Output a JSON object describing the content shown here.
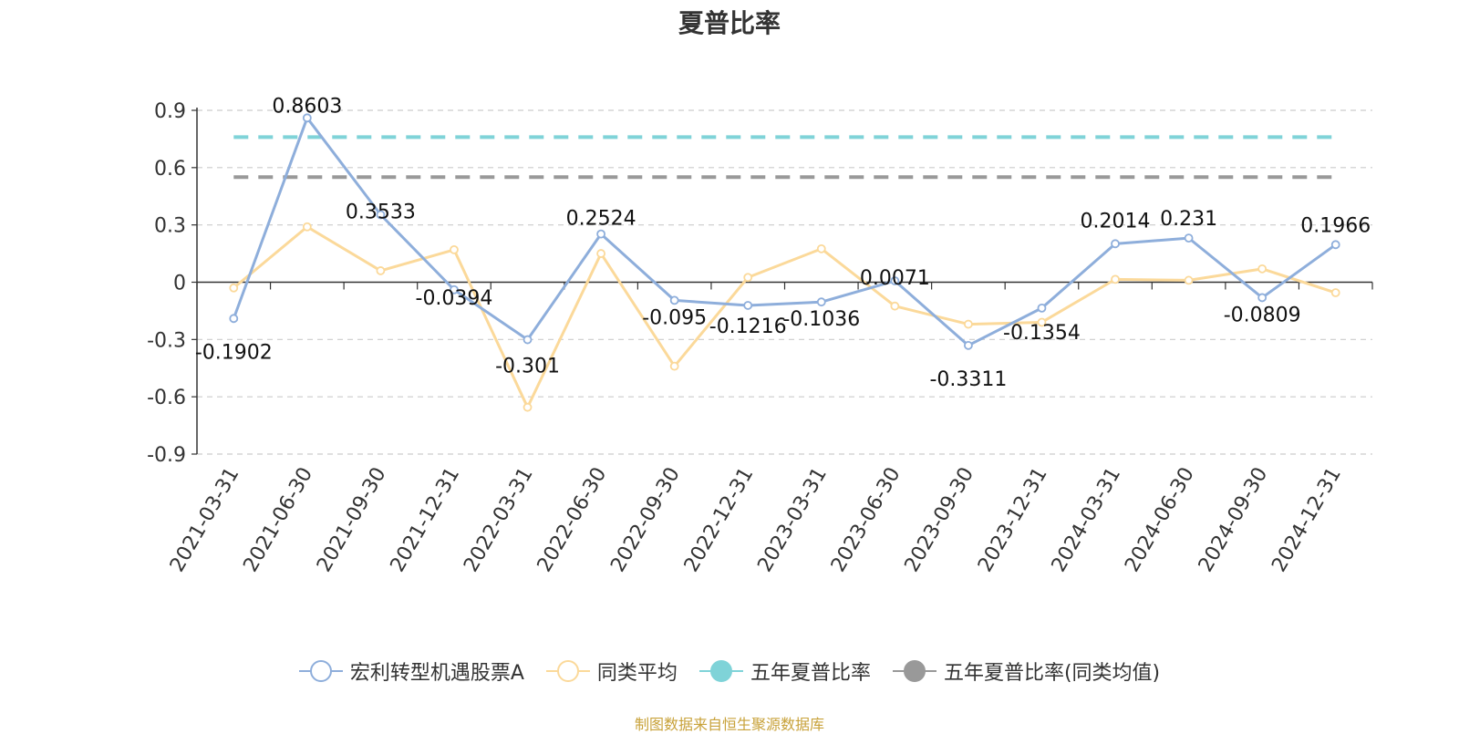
{
  "source_note": "制图数据来自恒生聚源数据库",
  "chart_data": {
    "type": "line",
    "title": "夏普比率",
    "x": [
      "2021-03-31",
      "2021-06-30",
      "2021-09-30",
      "2021-12-31",
      "2022-03-31",
      "2022-06-30",
      "2022-09-30",
      "2022-12-31",
      "2023-03-31",
      "2023-06-30",
      "2023-09-30",
      "2023-12-31",
      "2024-03-31",
      "2024-06-30",
      "2024-09-30",
      "2024-12-31"
    ],
    "ylim": [
      -0.9,
      0.9
    ],
    "yticks": [
      "0.9",
      "0.6",
      "0.3",
      "0",
      "-0.3",
      "-0.6",
      "-0.9"
    ],
    "ytick_values": [
      0.9,
      0.6,
      0.3,
      0,
      -0.3,
      -0.6,
      -0.9
    ],
    "grid": true,
    "legend_position": "bottom",
    "series": [
      {
        "name": "宏利转型机遇股票A",
        "color": "#8eaedb",
        "values": [
          -0.1902,
          0.8603,
          0.3533,
          -0.0394,
          -0.301,
          0.2524,
          -0.095,
          -0.1216,
          -0.1036,
          0.0071,
          -0.3311,
          -0.1354,
          0.2014,
          0.231,
          -0.0809,
          0.1966
        ],
        "labels": [
          "-0.1902",
          "0.8603",
          "0.3533",
          "-0.0394",
          "-0.301",
          "0.2524",
          "-0.095",
          "-0.1216",
          "-0.1036",
          "0.0071",
          "-0.3311",
          "-0.1354",
          "0.2014",
          "0.231",
          "-0.0809",
          "0.1966"
        ]
      },
      {
        "name": "同类平均",
        "color": "#fbd99a",
        "values": [
          -0.03,
          0.29,
          0.06,
          0.17,
          -0.655,
          0.15,
          -0.44,
          0.025,
          0.175,
          -0.125,
          -0.22,
          -0.21,
          0.015,
          0.01,
          0.07,
          -0.055
        ]
      },
      {
        "name": "五年夏普比率",
        "color": "#7fd3d8",
        "value": 0.76
      },
      {
        "name": "五年夏普比率(同类均值)",
        "color": "#999999",
        "value": 0.55
      }
    ]
  }
}
